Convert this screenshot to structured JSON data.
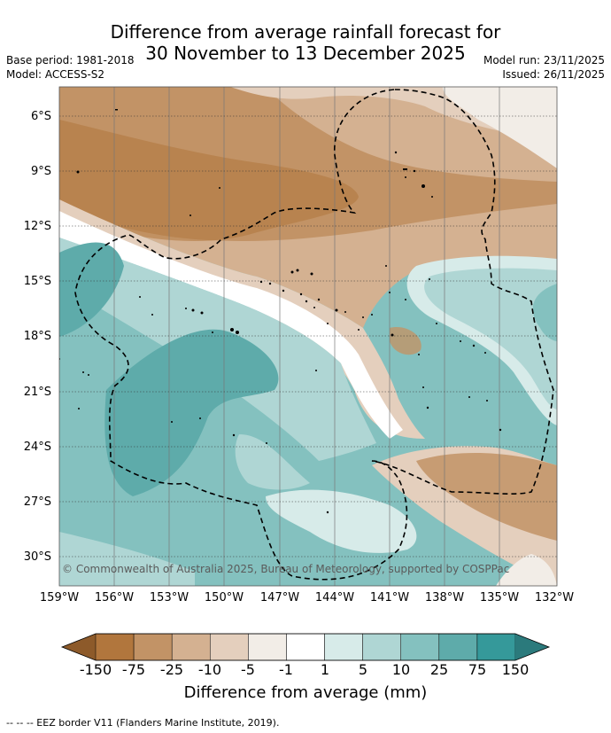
{
  "title_line1": "Difference from average rainfall forecast for",
  "title_line2": "30 November to 13 December 2025",
  "base_period": "Base period: 1981-2018",
  "model": "Model: ACCESS-S2",
  "model_run": "Model run: 23/11/2025",
  "issued": "Issued: 26/11/2025",
  "lat_labels": [
    "6°S",
    "9°S",
    "12°S",
    "15°S",
    "18°S",
    "21°S",
    "24°S",
    "27°S",
    "30°S"
  ],
  "lon_labels": [
    "159°W",
    "156°W",
    "153°W",
    "150°W",
    "147°W",
    "144°W",
    "141°W",
    "138°W",
    "135°W",
    "132°W"
  ],
  "copyright": "© Commonwealth of Australia 2025, Bureau of Meteorology, supported by COSPPac",
  "colorbar": {
    "labels": [
      "-150",
      "-75",
      "-25",
      "-10",
      "-5",
      "-1",
      "1",
      "5",
      "10",
      "25",
      "75",
      "150"
    ],
    "colors": [
      "#8d5a2a",
      "#b1763d",
      "#c29366",
      "#d4b191",
      "#e4cfbd",
      "#f2ede7",
      "#ffffff",
      "#d7ebe9",
      "#afd6d4",
      "#84c1bf",
      "#5eabaa",
      "#35999a",
      "#2b7a7c"
    ],
    "title": "Difference from average (mm)"
  },
  "footer": "--  --  -- EEZ border V11 (Flanders Marine Institute, 2019)."
}
